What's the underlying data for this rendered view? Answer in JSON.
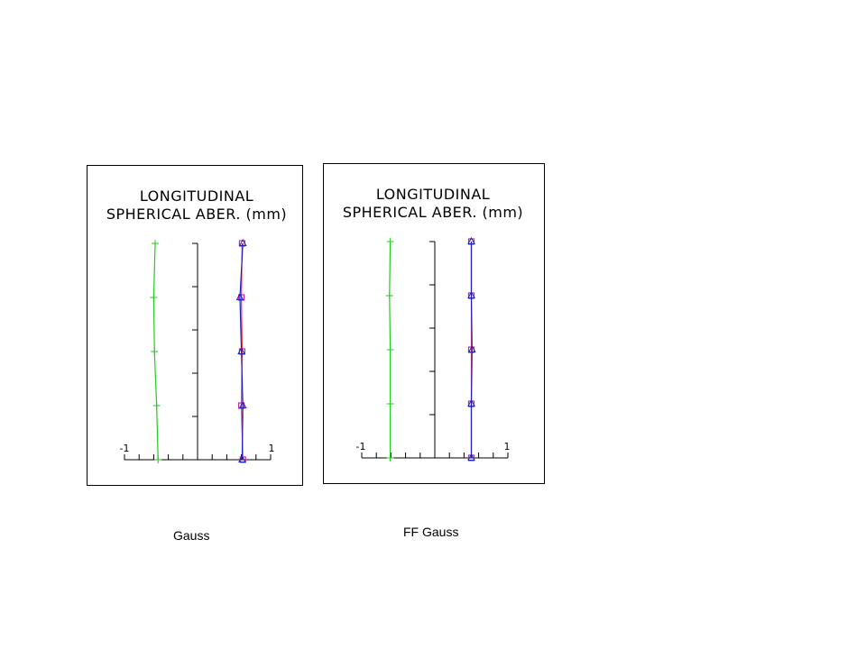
{
  "colors": {
    "green": "#22cc22",
    "red": "#e8343c",
    "blue": "#2020c0",
    "magenta": "#cc22aa",
    "frame": "#000000"
  },
  "charts": [
    {
      "caption": "Gauss",
      "title_line1": "LONGITUDINAL",
      "title_line2": "SPHERICAL ABER. (mm)",
      "xmin_label": "-1",
      "xmax_label": "1"
    },
    {
      "caption": "FF Gauss",
      "title_line1": "LONGITUDINAL",
      "title_line2": "SPHERICAL ABER. (mm)",
      "xmin_label": "-1",
      "xmax_label": "1"
    }
  ],
  "chart_data": [
    {
      "type": "line",
      "title": "LONGITUDINAL SPHERICAL ABER. (mm)",
      "xlim": [
        -1,
        1
      ],
      "ylim": [
        0,
        1
      ],
      "grid": false,
      "series": [
        {
          "color": "#22cc22",
          "marker": "plus",
          "y": [
            0,
            0.25,
            0.5,
            0.75,
            1.0
          ],
          "x": [
            -0.54,
            -0.56,
            -0.59,
            -0.6,
            -0.58
          ]
        },
        {
          "color": "#e8343c",
          "marker": "square",
          "y": [
            0,
            0.25,
            0.5,
            0.75,
            1.0
          ],
          "x": [
            0.62,
            0.6,
            0.61,
            0.6,
            0.61
          ]
        },
        {
          "color": "#2020c0",
          "marker": "triangle",
          "y": [
            0,
            0.25,
            0.5,
            0.75,
            1.0
          ],
          "x": [
            0.61,
            0.62,
            0.6,
            0.58,
            0.62
          ]
        }
      ]
    },
    {
      "type": "line",
      "title": "LONGITUDINAL SPHERICAL ABER. (mm)",
      "xlim": [
        -1,
        1
      ],
      "ylim": [
        0,
        1
      ],
      "grid": false,
      "series": [
        {
          "color": "#22cc22",
          "marker": "plus",
          "y": [
            0,
            0.25,
            0.5,
            0.75,
            1.0
          ],
          "x": [
            -0.61,
            -0.61,
            -0.61,
            -0.62,
            -0.61
          ]
        },
        {
          "color": "#e8343c",
          "marker": "square",
          "y": [
            0,
            0.25,
            0.5,
            0.75,
            1.0
          ],
          "x": [
            0.5,
            0.5,
            0.5,
            0.5,
            0.5
          ]
        },
        {
          "color": "#2020c0",
          "marker": "triangle",
          "y": [
            0,
            0.25,
            0.5,
            0.75,
            1.0
          ],
          "x": [
            0.5,
            0.5,
            0.51,
            0.5,
            0.5
          ]
        }
      ]
    }
  ]
}
